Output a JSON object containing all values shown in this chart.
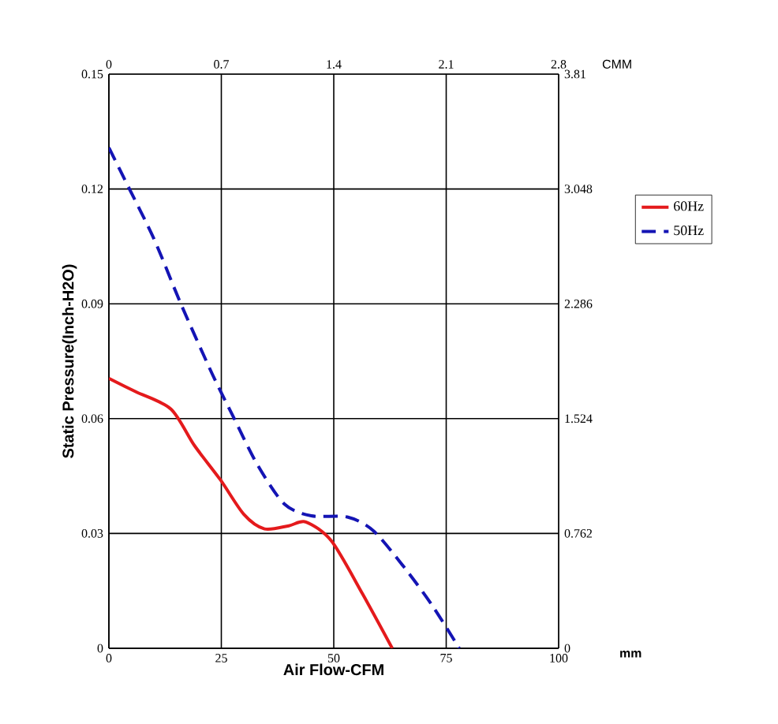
{
  "chart_data": {
    "type": "line",
    "xlabel": "Air Flow-CFM",
    "ylabel": "Static Pressure(Inch-H2O)",
    "x2label": "CMM",
    "y2label": "mm",
    "xlim": [
      0,
      100
    ],
    "xticks": [
      0,
      25,
      50,
      75,
      100
    ],
    "ylim": [
      0,
      0.15
    ],
    "yticks": [
      0,
      0.03,
      0.06,
      0.09,
      0.12,
      0.15
    ],
    "x2lim": [
      0,
      2.8
    ],
    "x2ticks": [
      0,
      0.7,
      1.4,
      2.1,
      2.8
    ],
    "y2lim": [
      0,
      3.81
    ],
    "y2ticks": [
      0,
      0.762,
      1.524,
      2.286,
      3.048,
      3.81
    ],
    "grid": true,
    "legend": "right",
    "series": [
      {
        "name": "60Hz",
        "color": "#e41a1c",
        "line_style": "solid",
        "x": [
          0,
          6,
          13.8,
          19,
          24.8,
          30,
          34.6,
          40,
          43.8,
          49.5,
          56.4,
          63
        ],
        "values": [
          0.0705,
          0.067,
          0.0625,
          0.053,
          0.044,
          0.035,
          0.0312,
          0.032,
          0.033,
          0.028,
          0.0142,
          0
        ]
      },
      {
        "name": "50Hz",
        "color": "#1414b4",
        "line_style": "dashed",
        "x": [
          0,
          3.5,
          10,
          16,
          23,
          27.7,
          33,
          39,
          45,
          53,
          58.8,
          65.7,
          72,
          77.9
        ],
        "values": [
          0.1308,
          0.1225,
          0.107,
          0.09,
          0.0716,
          0.0604,
          0.048,
          0.0377,
          0.0346,
          0.0343,
          0.0307,
          0.0211,
          0.011,
          0
        ]
      }
    ]
  }
}
